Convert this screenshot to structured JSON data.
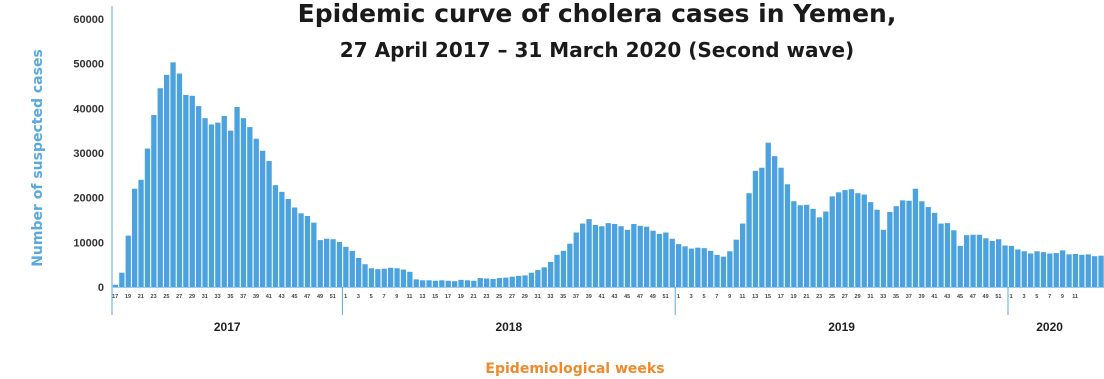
{
  "chart_data": {
    "type": "bar",
    "title": "Epidemic curve of cholera cases in Yemen,",
    "subtitle": "27 April 2017 – 31 March 2020 (Second wave)",
    "ylabel": "Number of suspected cases",
    "xlabel": "Epidemiological weeks",
    "ylim": [
      0,
      60000
    ],
    "yticks": [
      "0",
      "10000",
      "20000",
      "30000",
      "40000",
      "50000",
      "60000"
    ],
    "bar_color": "#4aa3df",
    "years": [
      {
        "label": "2017",
        "start_week": 17,
        "end_week": 52
      },
      {
        "label": "2018",
        "start_week": 1,
        "end_week": 52
      },
      {
        "label": "2019",
        "start_week": 1,
        "end_week": 52
      },
      {
        "label": "2020",
        "start_week": 1,
        "end_week": 13
      }
    ],
    "x_tick_labels": [
      "17",
      "19",
      "21",
      "23",
      "25",
      "27",
      "29",
      "31",
      "33",
      "35",
      "37",
      "39",
      "41",
      "43",
      "45",
      "47",
      "49",
      "51",
      "1",
      "3",
      "5",
      "7",
      "9",
      "11",
      "13",
      "15",
      "17",
      "19",
      "21",
      "23",
      "25",
      "27",
      "29",
      "31",
      "33",
      "35",
      "37",
      "39",
      "41",
      "43",
      "45",
      "47",
      "49",
      "51",
      "1",
      "3",
      "5",
      "7",
      "9",
      "11",
      "13",
      "15",
      "17",
      "19",
      "21",
      "23",
      "25",
      "27",
      "29",
      "31",
      "33",
      "35",
      "37",
      "39",
      "41",
      "43",
      "45",
      "47",
      "49",
      "51",
      "1",
      "3",
      "5",
      "7",
      "9",
      "11"
    ],
    "values": [
      500,
      3200,
      11500,
      22000,
      24000,
      31000,
      38500,
      44500,
      47500,
      50300,
      47800,
      43000,
      42800,
      40500,
      37800,
      36400,
      36800,
      38300,
      35000,
      40300,
      37800,
      35800,
      33200,
      30500,
      28200,
      22800,
      21300,
      19700,
      17800,
      16500,
      15900,
      14400,
      10500,
      10800,
      10700,
      10100,
      9000,
      8100,
      6500,
      5100,
      4200,
      4000,
      4100,
      4300,
      4200,
      3900,
      3400,
      1700,
      1500,
      1500,
      1400,
      1500,
      1400,
      1300,
      1600,
      1500,
      1400,
      2000,
      1900,
      1800,
      2000,
      2100,
      2300,
      2500,
      2600,
      3200,
      3800,
      4400,
      5600,
      7200,
      8100,
      9700,
      12200,
      14200,
      15200,
      13900,
      13600,
      14300,
      14100,
      13600,
      12800,
      14100,
      13700,
      13500,
      12600,
      11900,
      12200,
      10800,
      9600,
      9100,
      8600,
      8800,
      8700,
      8100,
      7200,
      6800,
      8000,
      10600,
      14200,
      21000,
      26000,
      26700,
      32300,
      29300,
      26700,
      23000,
      19200,
      18300,
      18400,
      17500,
      15600,
      16900,
      20300,
      21200,
      21700,
      21900,
      21000,
      20700,
      19000,
      17300,
      12800,
      16800,
      18100,
      19400,
      19300,
      22000,
      19200,
      17900,
      16600,
      14200,
      14300,
      12700,
      9200,
      11600,
      11700,
      11700,
      10900,
      10300,
      10700,
      9300,
      9200,
      8400,
      8000,
      7500,
      8000,
      7800,
      7500,
      7600,
      8200,
      7300,
      7400,
      7200,
      7300,
      6900,
      7000
    ]
  }
}
